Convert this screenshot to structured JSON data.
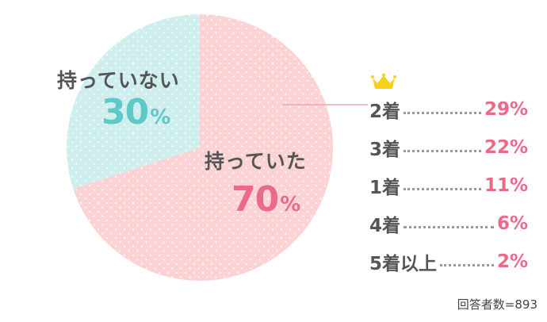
{
  "chart_data": {
    "type": "pie",
    "slices": [
      {
        "label": "持っていた",
        "value": 70,
        "pct_text": "70",
        "pct_sign": "%",
        "color": "#fbd3d4",
        "text_color": "#e96a8a"
      },
      {
        "label": "持っていない",
        "value": 30,
        "pct_text": "30",
        "pct_sign": "%",
        "color": "#cfeeee",
        "text_color": "#5ec9c6"
      }
    ],
    "breakdown": [
      {
        "label": "2着",
        "value": "29%"
      },
      {
        "label": "3着",
        "value": "22%"
      },
      {
        "label": "1着",
        "value": "11%"
      },
      {
        "label": "4着",
        "value": "6%"
      },
      {
        "label": "5着以上",
        "value": "2%"
      }
    ],
    "footnote": "回答者数=893"
  }
}
